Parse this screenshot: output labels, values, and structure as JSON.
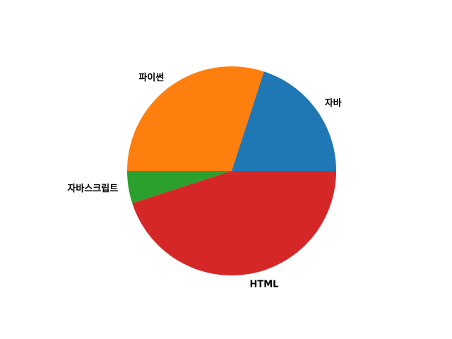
{
  "chart_data": {
    "type": "pie",
    "labels": [
      "자바",
      "파이썬",
      "자바스크립트",
      "HTML"
    ],
    "values": [
      20,
      30,
      5,
      45
    ],
    "colors": [
      "#1f77b4",
      "#ff7f0e",
      "#2ca02c",
      "#d62728"
    ],
    "start_angle_deg": 0,
    "direction": "counterclockwise",
    "title": "",
    "legend": "none"
  }
}
